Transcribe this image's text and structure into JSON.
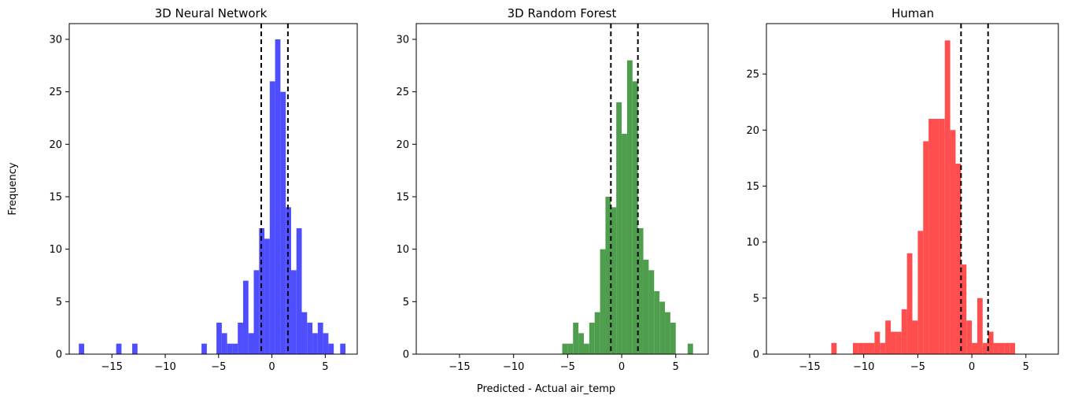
{
  "figure": {
    "ylabel": "Frequency",
    "xlabel": "Predicted - Actual air_temp"
  },
  "style": {
    "colors": [
      "#4444ff",
      "#449944",
      "#ff4444"
    ],
    "vline_color": "#000000"
  },
  "chart_data": [
    {
      "type": "bar",
      "title": "3D Neural Network",
      "xlim": [
        -19,
        8
      ],
      "ylim": [
        0,
        31.5
      ],
      "xticks": [
        -15,
        -10,
        -5,
        0,
        5
      ],
      "xtick_labels": [
        "−15",
        "−10",
        "−5",
        "0",
        "5"
      ],
      "yticks": [
        0,
        5,
        10,
        15,
        20,
        25,
        30
      ],
      "vlines": [
        -1,
        1.5
      ],
      "bin_width": 0.5,
      "bins": [
        {
          "x": -18.1,
          "count": 1
        },
        {
          "x": -14.6,
          "count": 1
        },
        {
          "x": -13.1,
          "count": 1
        },
        {
          "x": -6.6,
          "count": 1
        },
        {
          "x": -5.2,
          "count": 3
        },
        {
          "x": -4.7,
          "count": 2
        },
        {
          "x": -4.2,
          "count": 1
        },
        {
          "x": -3.7,
          "count": 1
        },
        {
          "x": -3.2,
          "count": 3
        },
        {
          "x": -2.7,
          "count": 7
        },
        {
          "x": -2.2,
          "count": 2
        },
        {
          "x": -1.7,
          "count": 8
        },
        {
          "x": -1.2,
          "count": 12
        },
        {
          "x": -0.7,
          "count": 11
        },
        {
          "x": -0.2,
          "count": 26
        },
        {
          "x": 0.3,
          "count": 30
        },
        {
          "x": 0.8,
          "count": 25
        },
        {
          "x": 1.3,
          "count": 14
        },
        {
          "x": 1.8,
          "count": 8
        },
        {
          "x": 2.3,
          "count": 12
        },
        {
          "x": 2.8,
          "count": 4
        },
        {
          "x": 3.3,
          "count": 3
        },
        {
          "x": 3.8,
          "count": 2
        },
        {
          "x": 4.3,
          "count": 3
        },
        {
          "x": 4.8,
          "count": 2
        },
        {
          "x": 5.3,
          "count": 1
        },
        {
          "x": 6.4,
          "count": 1
        }
      ]
    },
    {
      "type": "bar",
      "title": "3D Random Forest",
      "xlim": [
        -19,
        8
      ],
      "ylim": [
        0,
        31.5
      ],
      "xticks": [
        -15,
        -10,
        -5,
        0,
        5
      ],
      "xtick_labels": [
        "−15",
        "−10",
        "−5",
        "0",
        "5"
      ],
      "yticks": [
        0,
        5,
        10,
        15,
        20,
        25,
        30
      ],
      "vlines": [
        -1,
        1.5
      ],
      "bin_width": 0.5,
      "bins": [
        {
          "x": -5.5,
          "count": 1
        },
        {
          "x": -5.0,
          "count": 1
        },
        {
          "x": -4.5,
          "count": 3
        },
        {
          "x": -4.0,
          "count": 2
        },
        {
          "x": -3.5,
          "count": 1
        },
        {
          "x": -3.0,
          "count": 3
        },
        {
          "x": -2.5,
          "count": 4
        },
        {
          "x": -2.0,
          "count": 10
        },
        {
          "x": -1.5,
          "count": 15
        },
        {
          "x": -1.0,
          "count": 14
        },
        {
          "x": -0.5,
          "count": 24
        },
        {
          "x": 0.0,
          "count": 21
        },
        {
          "x": 0.5,
          "count": 28
        },
        {
          "x": 1.0,
          "count": 26
        },
        {
          "x": 1.5,
          "count": 12
        },
        {
          "x": 2.0,
          "count": 9
        },
        {
          "x": 2.5,
          "count": 8
        },
        {
          "x": 3.0,
          "count": 6
        },
        {
          "x": 3.5,
          "count": 5
        },
        {
          "x": 4.0,
          "count": 4
        },
        {
          "x": 4.5,
          "count": 3
        },
        {
          "x": 6.1,
          "count": 1
        }
      ]
    },
    {
      "type": "bar",
      "title": "Human",
      "xlim": [
        -19,
        8
      ],
      "ylim": [
        0,
        29.5
      ],
      "xticks": [
        -15,
        -10,
        -5,
        0,
        5
      ],
      "xtick_labels": [
        "−15",
        "−10",
        "−5",
        "0",
        "5"
      ],
      "yticks": [
        0,
        5,
        10,
        15,
        20,
        25
      ],
      "vlines": [
        -1,
        1.5
      ],
      "bin_width": 0.5,
      "bins": [
        {
          "x": -13.0,
          "count": 1
        },
        {
          "x": -11.0,
          "count": 1
        },
        {
          "x": -10.5,
          "count": 1
        },
        {
          "x": -10.0,
          "count": 1
        },
        {
          "x": -9.5,
          "count": 1
        },
        {
          "x": -9.0,
          "count": 2
        },
        {
          "x": -8.5,
          "count": 1
        },
        {
          "x": -8.0,
          "count": 3
        },
        {
          "x": -7.5,
          "count": 2
        },
        {
          "x": -7.0,
          "count": 2
        },
        {
          "x": -6.5,
          "count": 4
        },
        {
          "x": -6.0,
          "count": 9
        },
        {
          "x": -5.5,
          "count": 3
        },
        {
          "x": -5.0,
          "count": 11
        },
        {
          "x": -4.5,
          "count": 19
        },
        {
          "x": -4.0,
          "count": 21
        },
        {
          "x": -3.5,
          "count": 21
        },
        {
          "x": -3.0,
          "count": 21
        },
        {
          "x": -2.5,
          "count": 28
        },
        {
          "x": -2.0,
          "count": 20
        },
        {
          "x": -1.5,
          "count": 17
        },
        {
          "x": -1.0,
          "count": 8
        },
        {
          "x": -0.5,
          "count": 3
        },
        {
          "x": 0.0,
          "count": 1
        },
        {
          "x": 0.5,
          "count": 5
        },
        {
          "x": 1.0,
          "count": 1
        },
        {
          "x": 1.5,
          "count": 2
        },
        {
          "x": 2.0,
          "count": 1
        },
        {
          "x": 2.5,
          "count": 1
        },
        {
          "x": 3.0,
          "count": 1
        },
        {
          "x": 3.5,
          "count": 1
        }
      ]
    }
  ]
}
